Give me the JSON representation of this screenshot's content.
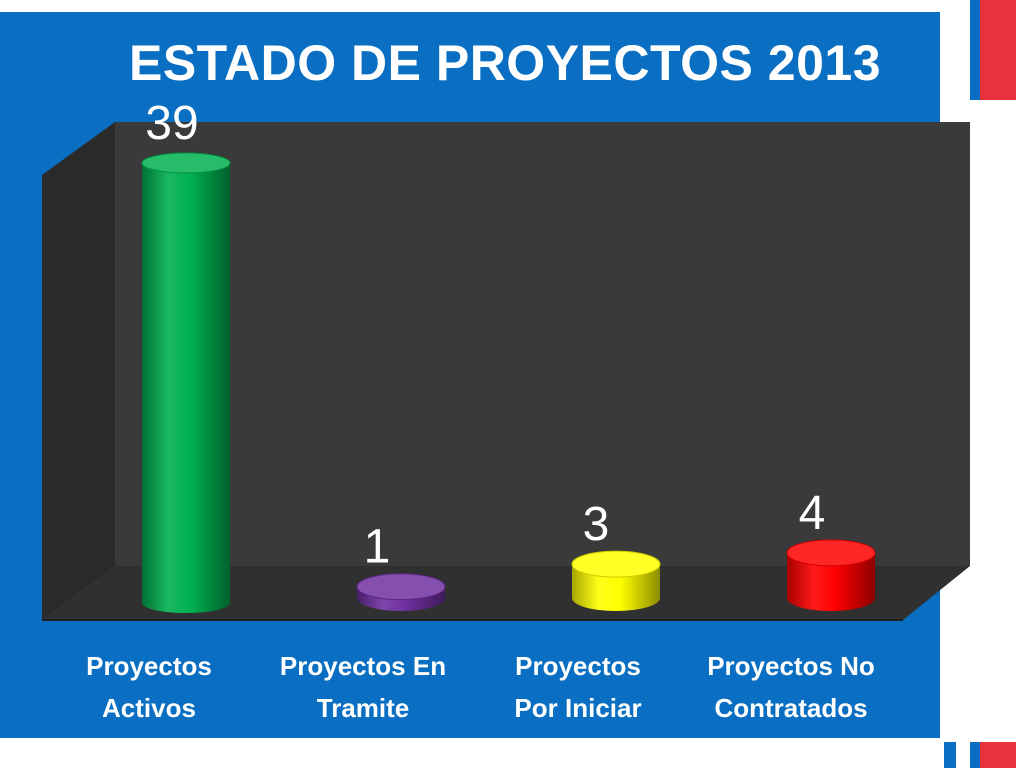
{
  "chart_data": {
    "type": "bar",
    "title": "ESTADO DE PROYECTOS 2013",
    "categories": [
      [
        "Proyectos",
        "Activos"
      ],
      [
        "Proyectos En",
        "Tramite"
      ],
      [
        "Proyectos",
        "Por Iniciar"
      ],
      [
        "Proyectos No",
        "Contratados"
      ]
    ],
    "values": [
      39,
      1,
      3,
      4
    ],
    "data_labels": [
      "39",
      "1",
      "3",
      "4"
    ],
    "colors": [
      "#00b050",
      "#7030a0",
      "#ffff00",
      "#ff0000"
    ],
    "ylim": [
      0,
      39
    ],
    "grid": false,
    "legend": "none",
    "style": "3d-cylinder"
  },
  "theme": {
    "frame_color": "#0a6fc2",
    "accent_red": "#e8323c",
    "plot_back": "#3a3a3a",
    "plot_side": "#2a2a2a",
    "plot_floor": "#303030"
  }
}
